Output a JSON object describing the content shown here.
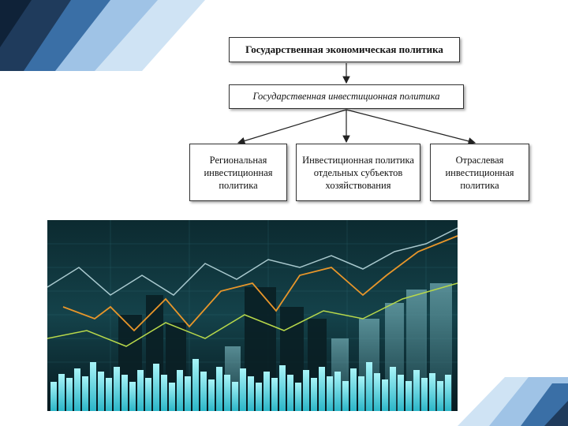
{
  "diagram": {
    "top_box": "Государственная экономическая политика",
    "middle_box": "Государственная инвестиционная политика",
    "children": [
      "Региональная инвестиционная политика",
      "Инвестиционная политика отдельных субъектов хозяйствования",
      "Отраслевая инвестиционная политика"
    ]
  },
  "colors": {
    "corner_dark": "#1f3b5c",
    "corner_mid": "#3a6fa6",
    "corner_light": "#9fc3e6",
    "photo_bg": "#0e2a33",
    "photo_bars": "#6fe6f0",
    "line_orange": "#e8962a",
    "line_green": "#b8d84a",
    "line_white": "#cfeef2"
  }
}
